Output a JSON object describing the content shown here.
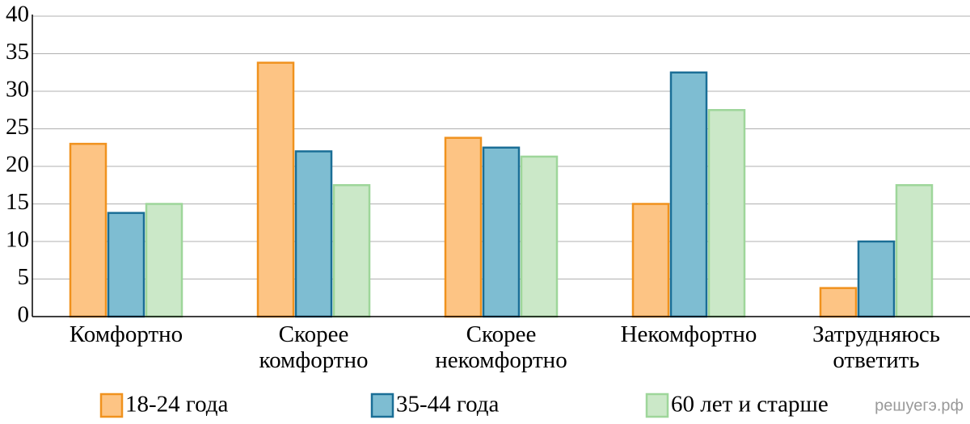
{
  "chart_data": {
    "type": "bar",
    "categories": [
      "Комфортно",
      "Скорее комфортно",
      "Скорее некомфортно",
      "Некомфортно",
      "Затрудняюсь ответить"
    ],
    "series": [
      {
        "name": "18-24 года",
        "color": "#fdc484",
        "edgecolor": "#f0921e",
        "values": [
          23,
          33.8,
          23.8,
          15,
          3.8
        ]
      },
      {
        "name": "35-44 года",
        "color": "#7ebdd2",
        "edgecolor": "#1a6e96",
        "values": [
          13.8,
          22,
          22.5,
          32.5,
          10
        ]
      },
      {
        "name": "60 лет и старше",
        "color": "#cbe8c8",
        "edgecolor": "#9ed69a",
        "values": [
          15,
          17.5,
          21.3,
          27.5,
          17.5
        ]
      }
    ],
    "ylim": [
      0,
      40
    ],
    "yticks": [
      0,
      5,
      10,
      15,
      20,
      25,
      30,
      35,
      40
    ],
    "grid": true,
    "watermark": "решуегэ.рф"
  }
}
